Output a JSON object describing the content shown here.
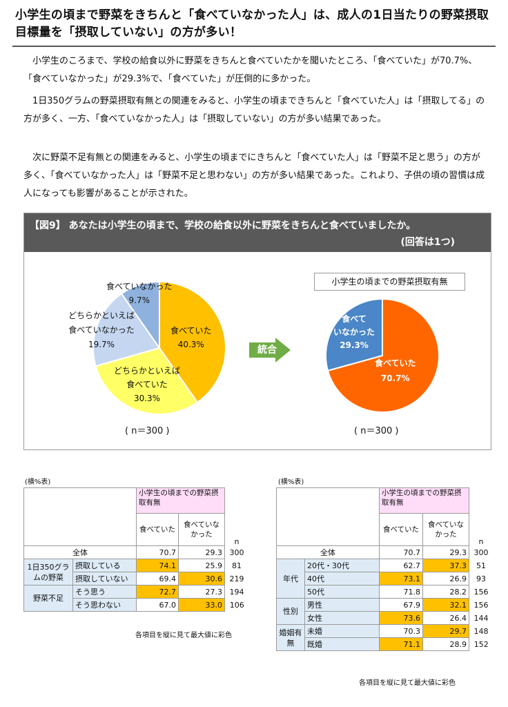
{
  "headline": "小学生の頃まで野菜をきちんと「食べていなかった人」は、成人の1日当たりの野菜摂取目標量を「摂取していない」の方が多い！",
  "paragraphs": [
    "小学生のころまで、学校の給食以外に野菜をきちんと食べていたかを聞いたところ、「食べていた」が70.7%、「食べていなかった」が29.3%で、「食べていた」が圧倒的に多かった。",
    "1日350グラムの野菜摂取有無との関連をみると、小学生の頃まできちんと「食べていた人」は「摂取してる」の方が多く、一方、「食べていなかった人」は「摂取していない」の方が多い結果であった。",
    "次に野菜不足有無との関連をみると、小学生の頃までにきちんと「食べていた人」は「野菜不足と思う」の方が多く、「食べていなかった人」は「野菜不足と思わない」の方が多い結果であった。これより、子供の頃の習慣は成人になっても影響があることが示された。"
  ],
  "figure": {
    "title": "【図9】 あなたは小学生の頃まで、学校の給食以外に野菜をきちんと食べていましたか。",
    "note": "(回答は1つ)",
    "arrow_label": "統合",
    "right_legend": "小学生の頃までの野菜摂取有無",
    "n_left": "( n＝300 )",
    "n_right": "( n＝300 )",
    "labels": {
      "l1a": "食べていなかった",
      "l1b": "9.7%",
      "l2a": "どちらかといえば",
      "l2b": "食べていなかった",
      "l2c": "19.7%",
      "l3a": "食べていた",
      "l3b": "40.3%",
      "l4a": "どちらかといえば",
      "l4b": "食べていた",
      "l4c": "30.3%",
      "r1a": "食べて",
      "r1b": "いなかった",
      "r1c": "29.3%",
      "r2a": "食べていた",
      "r2b": "70.7%"
    }
  },
  "chart_data": [
    {
      "type": "pie",
      "categories": [
        "食べていた",
        "どちらかといえば食べていた",
        "どちらかといえば食べていなかった",
        "食べていなかった"
      ],
      "values": [
        40.3,
        30.3,
        19.7,
        9.7
      ],
      "colors": [
        "#FFC000",
        "#FFFF66",
        "#C5D7F0",
        "#8EB2DD"
      ]
    },
    {
      "type": "pie",
      "categories": [
        "食べていた",
        "食べていなかった"
      ],
      "values": [
        70.7,
        29.3
      ],
      "colors": [
        "#FF6600",
        "#4A86C8"
      ]
    }
  ],
  "table_left": {
    "caption": "(横%表)",
    "header_group": "小学生の頃までの野菜摂取有無",
    "col1": "食べていた",
    "col2": "食べていなかった",
    "col_n": "n",
    "total": {
      "label": "全体",
      "v1": "70.7",
      "v2": "29.3",
      "n": "300"
    },
    "group1": "1日350グラムの野菜",
    "group2": "野菜不足",
    "r1": {
      "label": "摂取している",
      "v1": "74.1",
      "v2": "25.9",
      "n": "81"
    },
    "r2": {
      "label": "摂取していない",
      "v1": "69.4",
      "v2": "30.6",
      "n": "219"
    },
    "r3": {
      "label": "そう思う",
      "v1": "72.7",
      "v2": "27.3",
      "n": "194"
    },
    "r4": {
      "label": "そう思わない",
      "v1": "67.0",
      "v2": "33.0",
      "n": "106"
    },
    "foot": "各項目を縦に見て最大値に彩色"
  },
  "table_right": {
    "caption": "(横%表)",
    "header_group": "小学生の頃までの野菜摂取有無",
    "col1": "食べていた",
    "col2": "食べていなかった",
    "col_n": "n",
    "total": {
      "label": "全体",
      "v1": "70.7",
      "v2": "29.3",
      "n": "300"
    },
    "group1": "年代",
    "group2": "性別",
    "group3": "婚姻有無",
    "r1": {
      "label": "20代・30代",
      "v1": "62.7",
      "v2": "37.3",
      "n": "51"
    },
    "r2": {
      "label": "40代",
      "v1": "73.1",
      "v2": "26.9",
      "n": "93"
    },
    "r3": {
      "label": "50代",
      "v1": "71.8",
      "v2": "28.2",
      "n": "156"
    },
    "r4": {
      "label": "男性",
      "v1": "67.9",
      "v2": "32.1",
      "n": "156"
    },
    "r5": {
      "label": "女性",
      "v1": "73.6",
      "v2": "26.4",
      "n": "144"
    },
    "r6": {
      "label": "未婚",
      "v1": "70.3",
      "v2": "29.7",
      "n": "148"
    },
    "r7": {
      "label": "既婚",
      "v1": "71.1",
      "v2": "28.9",
      "n": "152"
    },
    "foot": "各項目を縦に見て最大値に彩色"
  }
}
